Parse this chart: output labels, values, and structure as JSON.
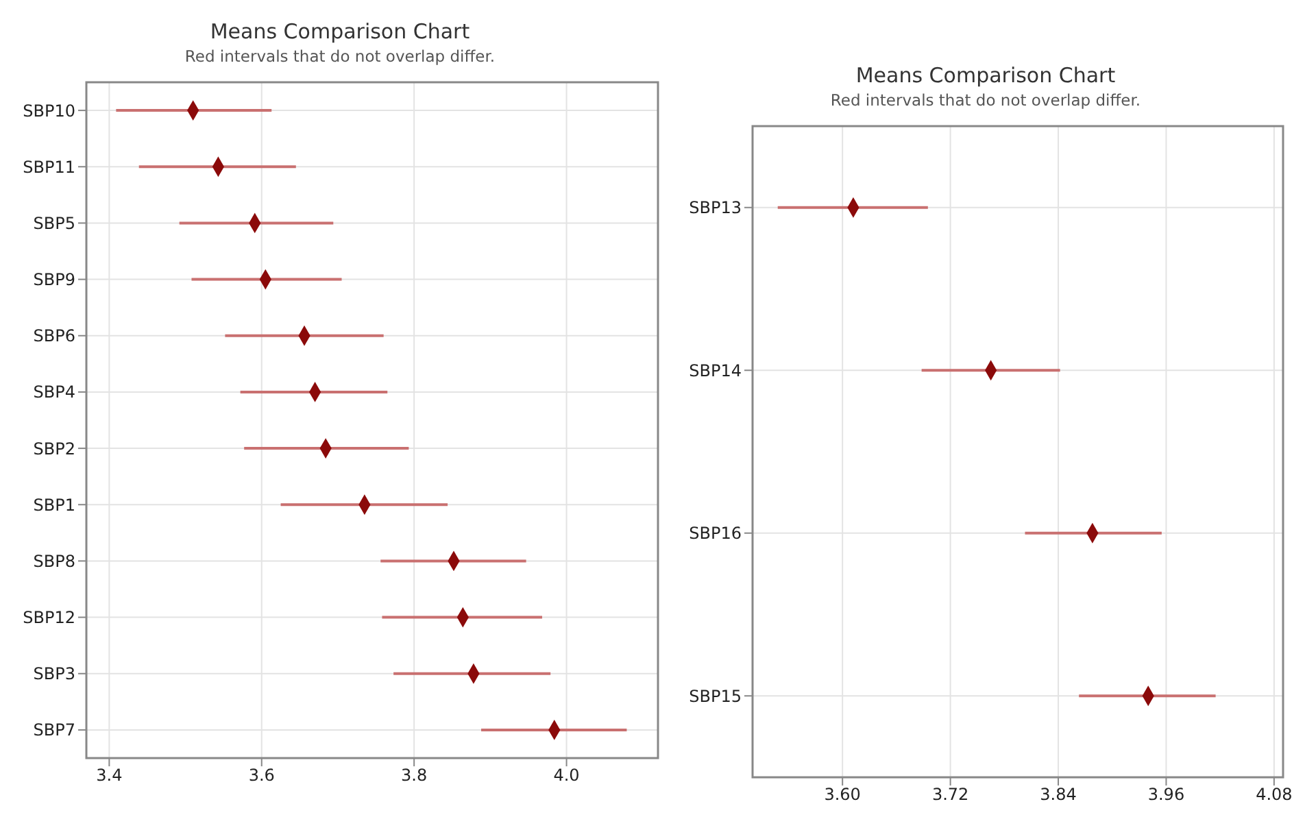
{
  "chart_data": [
    {
      "type": "scatter",
      "orientation": "horizontal",
      "title": "Means Comparison Chart",
      "subtitle": "Red intervals that do not overlap differ.",
      "categories": [
        "SBP10",
        "SBP11",
        "SBP5",
        "SBP9",
        "SBP6",
        "SBP4",
        "SBP2",
        "SBP1",
        "SBP8",
        "SBP12",
        "SBP3",
        "SBP7"
      ],
      "series": [
        {
          "color": "#8b0a0a",
          "values": [
            3.51,
            3.543,
            3.591,
            3.605,
            3.656,
            3.67,
            3.684,
            3.735,
            3.852,
            3.864,
            3.878,
            3.984
          ],
          "errors": [
            [
              3.409,
              3.613
            ],
            [
              3.439,
              3.645
            ],
            [
              3.492,
              3.694
            ],
            [
              3.508,
              3.705
            ],
            [
              3.552,
              3.76
            ],
            [
              3.572,
              3.765
            ],
            [
              3.577,
              3.793
            ],
            [
              3.625,
              3.844
            ],
            [
              3.756,
              3.947
            ],
            [
              3.758,
              3.968
            ],
            [
              3.773,
              3.979
            ],
            [
              3.888,
              4.079
            ]
          ]
        }
      ],
      "xlim": [
        3.37,
        4.12
      ],
      "xticks": [
        {
          "value": 3.4,
          "label": "3.4"
        },
        {
          "value": 3.6,
          "label": "3.6"
        },
        {
          "value": 3.8,
          "label": "3.8"
        },
        {
          "value": 4.0,
          "label": "4.0"
        }
      ],
      "grid": true,
      "marker": "diamond",
      "legend": false
    },
    {
      "type": "scatter",
      "orientation": "horizontal",
      "title": "Means Comparison Chart",
      "subtitle": "Red intervals that do not overlap differ.",
      "categories": [
        "SBP13",
        "SBP14",
        "SBP16",
        "SBP15"
      ],
      "series": [
        {
          "color": "#8b0a0a",
          "values": [
            3.612,
            3.765,
            3.878,
            3.94
          ],
          "errors": [
            [
              3.528,
              3.695
            ],
            [
              3.688,
              3.842
            ],
            [
              3.803,
              3.955
            ],
            [
              3.863,
              4.015
            ]
          ]
        }
      ],
      "xlim": [
        3.5,
        4.09
      ],
      "xticks": [
        {
          "value": 3.6,
          "label": "3.60"
        },
        {
          "value": 3.72,
          "label": "3.72"
        },
        {
          "value": 3.84,
          "label": "3.84"
        },
        {
          "value": 3.96,
          "label": "3.96"
        },
        {
          "value": 4.08,
          "label": "4.08"
        }
      ],
      "grid": true,
      "marker": "diamond",
      "legend": false
    }
  ]
}
